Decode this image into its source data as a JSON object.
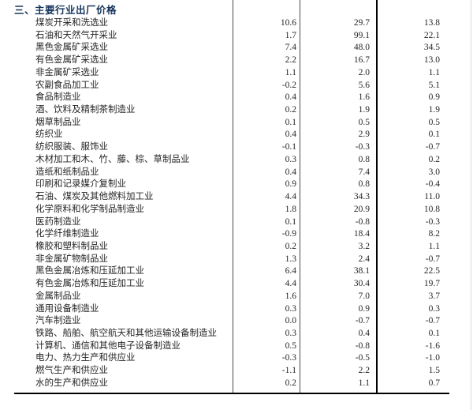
{
  "title": "三、主要行业出厂价格",
  "colors": {
    "title": "#17365d",
    "text": "#262626",
    "rule": "#000000",
    "divider": "#4a4a4a"
  },
  "table": {
    "rows": [
      {
        "name": "煤炭开采和洗选业",
        "values": [
          "10.6",
          "29.7",
          "13.8"
        ]
      },
      {
        "name": "石油和天然气开采业",
        "values": [
          "1.7",
          "99.1",
          "22.1"
        ]
      },
      {
        "name": "黑色金属矿采选业",
        "values": [
          "7.4",
          "48.0",
          "34.5"
        ]
      },
      {
        "name": "有色金属矿采选业",
        "values": [
          "2.2",
          "16.7",
          "13.0"
        ]
      },
      {
        "name": "非金属矿采选业",
        "values": [
          "1.1",
          "2.0",
          "1.1"
        ]
      },
      {
        "name": "农副食品加工业",
        "values": [
          "-0.2",
          "5.6",
          "5.1"
        ]
      },
      {
        "name": "食品制造业",
        "values": [
          "0.4",
          "1.6",
          "0.9"
        ]
      },
      {
        "name": "酒、饮料及精制茶制造业",
        "values": [
          "0.2",
          "1.9",
          "1.9"
        ]
      },
      {
        "name": "烟草制品业",
        "values": [
          "0.1",
          "0.5",
          "0.5"
        ]
      },
      {
        "name": "纺织业",
        "values": [
          "0.4",
          "2.9",
          "0.1"
        ]
      },
      {
        "name": "纺织服装、服饰业",
        "values": [
          "-0.1",
          "-0.3",
          "-0.7"
        ]
      },
      {
        "name": "木材加工和木、竹、藤、棕、草制品业",
        "values": [
          "0.3",
          "0.8",
          "0.2"
        ]
      },
      {
        "name": "造纸和纸制品业",
        "values": [
          "0.4",
          "7.4",
          "3.0"
        ]
      },
      {
        "name": "印刷和记录媒介复制业",
        "values": [
          "0.9",
          "0.8",
          "-0.4"
        ]
      },
      {
        "name": "石油、煤炭及其他燃料加工业",
        "values": [
          "4.4",
          "34.3",
          "11.0"
        ]
      },
      {
        "name": "化学原料和化学制品制造业",
        "values": [
          "1.8",
          "20.9",
          "10.8"
        ]
      },
      {
        "name": "医药制造业",
        "values": [
          "0.1",
          "-0.8",
          "-0.3"
        ]
      },
      {
        "name": "化学纤维制造业",
        "values": [
          "-0.9",
          "18.4",
          "8.2"
        ]
      },
      {
        "name": "橡胶和塑料制品业",
        "values": [
          "0.2",
          "3.2",
          "1.1"
        ]
      },
      {
        "name": "非金属矿物制品业",
        "values": [
          "1.3",
          "2.4",
          "-0.7"
        ]
      },
      {
        "name": "黑色金属冶炼和压延加工业",
        "values": [
          "6.4",
          "38.1",
          "22.5"
        ]
      },
      {
        "name": "有色金属冶炼和压延加工业",
        "values": [
          "4.4",
          "30.4",
          "19.7"
        ]
      },
      {
        "name": "金属制品业",
        "values": [
          "1.6",
          "7.0",
          "3.7"
        ]
      },
      {
        "name": "通用设备制造业",
        "values": [
          "0.3",
          "0.9",
          "0.3"
        ]
      },
      {
        "name": "汽车制造业",
        "values": [
          "0.0",
          "-0.7",
          "-0.7"
        ]
      },
      {
        "name": "铁路、船舶、航空航天和其他运输设备制造业",
        "values": [
          "0.3",
          "0.4",
          "0.1"
        ]
      },
      {
        "name": "计算机、通信和其他电子设备制造业",
        "values": [
          "0.5",
          "-0.8",
          "-1.6"
        ]
      },
      {
        "name": "电力、热力生产和供应业",
        "values": [
          "-0.3",
          "-0.5",
          "-1.0"
        ]
      },
      {
        "name": "燃气生产和供应业",
        "values": [
          "-1.1",
          "2.2",
          "1.5"
        ]
      },
      {
        "name": "水的生产和供应业",
        "values": [
          "0.2",
          "1.1",
          "0.7"
        ]
      }
    ]
  }
}
